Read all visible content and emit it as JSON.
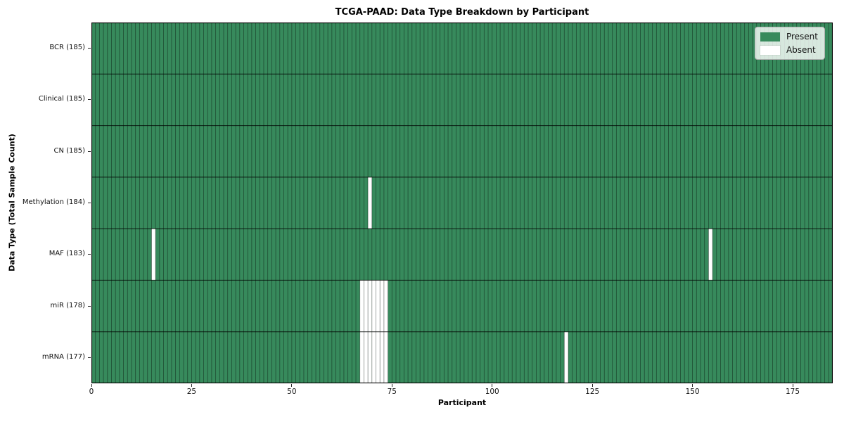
{
  "chart_data": {
    "type": "heatmap",
    "title": "TCGA-PAAD: Data Type Breakdown by Participant",
    "xlabel": "Participant",
    "ylabel": "Data Type (Total Sample Count)",
    "n_participants": 185,
    "x_axis_range": [
      0,
      185
    ],
    "x_ticks": [
      0,
      25,
      50,
      75,
      100,
      125,
      150,
      175
    ],
    "rows": [
      {
        "label": "BCR (185)",
        "data_type": "BCR",
        "total_sample_count": 185,
        "absent_participants": []
      },
      {
        "label": "Clinical (185)",
        "data_type": "Clinical",
        "total_sample_count": 185,
        "absent_participants": []
      },
      {
        "label": "CN (185)",
        "data_type": "CN",
        "total_sample_count": 185,
        "absent_participants": []
      },
      {
        "label": "Methylation (184)",
        "data_type": "Methylation",
        "total_sample_count": 184,
        "absent_participants": [
          69
        ]
      },
      {
        "label": "MAF (183)",
        "data_type": "MAF",
        "total_sample_count": 183,
        "absent_participants": [
          15,
          154
        ]
      },
      {
        "label": "miR (178)",
        "data_type": "miR",
        "total_sample_count": 178,
        "absent_participants": [
          67,
          68,
          69,
          70,
          71,
          72,
          73
        ]
      },
      {
        "label": "mRNA (177)",
        "data_type": "mRNA",
        "total_sample_count": 177,
        "absent_participants": [
          67,
          68,
          69,
          70,
          71,
          72,
          73,
          118
        ]
      }
    ],
    "legend": [
      {
        "label": "Present",
        "color": "#378a5c"
      },
      {
        "label": "Absent",
        "color": "#ffffff"
      }
    ],
    "legend_position": "upper right",
    "colors": {
      "present": "#378a5c",
      "absent": "#ffffff",
      "cell_edge": "rgba(0,0,0,0.45)",
      "row_edge": "rgba(0,0,0,0.8)",
      "plot_border": "#000000"
    }
  }
}
